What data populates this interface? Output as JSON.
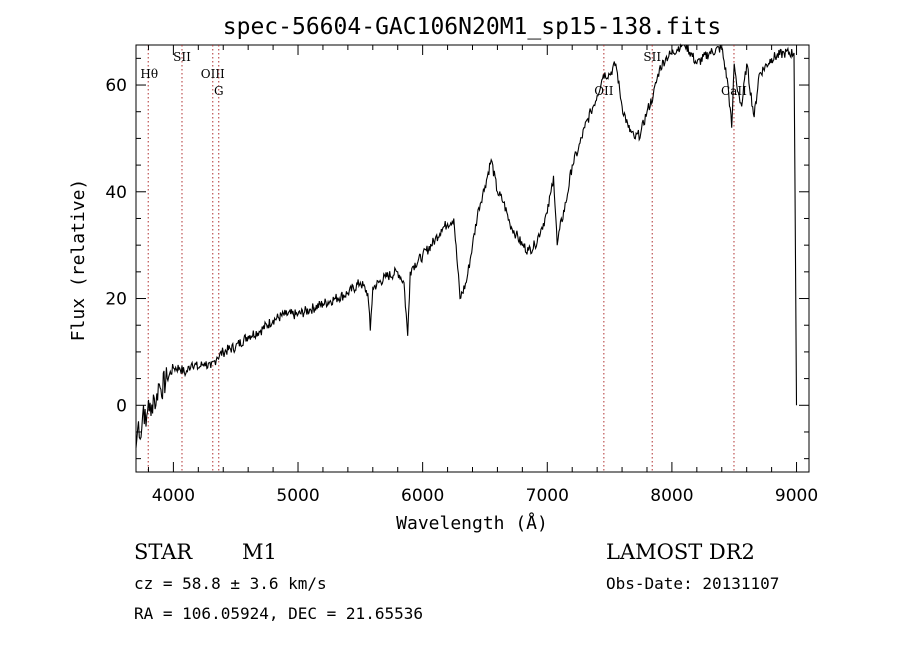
{
  "chart_data": {
    "type": "line",
    "title": "spec-56604-GAC106N20M1_sp15-138.fits",
    "xlabel": "Wavelength (Å)",
    "ylabel": "Flux (relative)",
    "xlim": [
      3700,
      9100
    ],
    "ylim": [
      -12.5,
      67.5
    ],
    "xticks": [
      4000,
      5000,
      6000,
      7000,
      8000,
      9000
    ],
    "yticks": [
      0,
      20,
      40,
      60
    ],
    "grid": false,
    "series": [
      {
        "name": "spectrum",
        "x": [
          3700,
          3720,
          3740,
          3760,
          3780,
          3800,
          3820,
          3840,
          3860,
          3880,
          3900,
          3950,
          4000,
          4050,
          4100,
          4150,
          4200,
          4250,
          4300,
          4350,
          4400,
          4500,
          4600,
          4700,
          4800,
          4900,
          5000,
          5100,
          5200,
          5300,
          5400,
          5500,
          5560,
          5580,
          5600,
          5700,
          5800,
          5850,
          5880,
          5900,
          5920,
          6000,
          6100,
          6150,
          6200,
          6250,
          6300,
          6350,
          6400,
          6450,
          6500,
          6550,
          6600,
          6650,
          6700,
          6750,
          6800,
          6850,
          6900,
          6950,
          7000,
          7030,
          7050,
          7080,
          7100,
          7150,
          7200,
          7250,
          7300,
          7350,
          7400,
          7450,
          7500,
          7550,
          7600,
          7650,
          7700,
          7750,
          7800,
          7850,
          7900,
          7950,
          8000,
          8100,
          8200,
          8300,
          8400,
          8450,
          8480,
          8500,
          8520,
          8540,
          8560,
          8600,
          8660,
          8700,
          8800,
          8900,
          8980,
          9000
        ],
        "y": [
          -8,
          -3,
          -6,
          0,
          -4,
          1,
          -2,
          2,
          0,
          4,
          3,
          5,
          7,
          7,
          6,
          8,
          7,
          8,
          7,
          9,
          10,
          11,
          13,
          14,
          16,
          17,
          17,
          18,
          19,
          20,
          21,
          23,
          21,
          14,
          22,
          24,
          25,
          23,
          13,
          25,
          26,
          28,
          31,
          33,
          34,
          35,
          20,
          23,
          30,
          37,
          41,
          46,
          40,
          38,
          34,
          32,
          30,
          29,
          30,
          33,
          36,
          40,
          43,
          30,
          33,
          38,
          45,
          48,
          52,
          55,
          58,
          62,
          62,
          64,
          56,
          52,
          50,
          51,
          55,
          58,
          63,
          65,
          66,
          68,
          64,
          66,
          67,
          60,
          52,
          64,
          60,
          58,
          56,
          64,
          54,
          62,
          65,
          66,
          66,
          0
        ]
      }
    ],
    "spectral_lines": [
      {
        "label": "Hθ",
        "x": 3798
      },
      {
        "label": "SII",
        "x": 4069
      },
      {
        "label": "OIII",
        "x": 4316
      },
      {
        "label": "G",
        "x": 4364
      },
      {
        "label": "OII",
        "x": 7454
      },
      {
        "label": "SII",
        "x": 7842
      },
      {
        "label": "CaII",
        "x": 8498
      }
    ]
  },
  "info": {
    "class_label": "STAR",
    "subclass": "M1",
    "survey": "LAMOST DR2",
    "redshift": "cz = 58.8 ± 3.6 km/s",
    "obs_date": "Obs-Date: 20131107",
    "coords": "RA = 106.05924, DEC =  21.65536"
  }
}
